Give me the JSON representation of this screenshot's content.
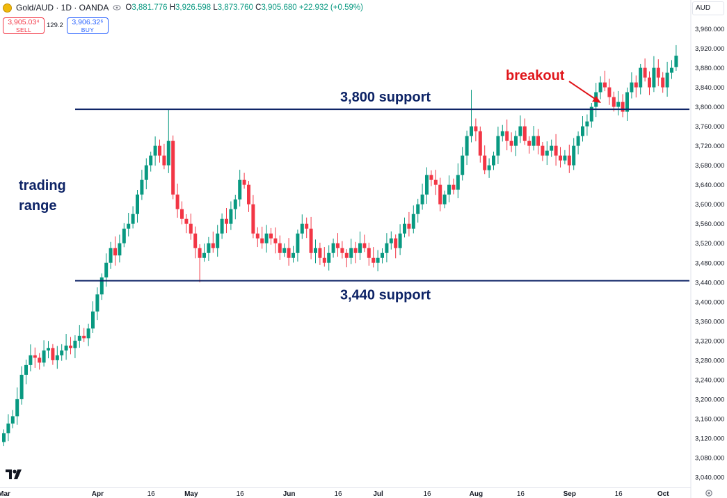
{
  "header": {
    "symbol": "Gold/AUD · 1D · OANDA",
    "open_key": "O",
    "open": "3,881.776",
    "high_key": "H",
    "high": "3,926.598",
    "low_key": "L",
    "low": "3,873.760",
    "close_key": "C",
    "close": "3,905.680",
    "change": "+22.932 (+0.59%)"
  },
  "trade": {
    "sell_price": "3,905.03⁴",
    "sell_label": "SELL",
    "spread": "129.2",
    "buy_price": "3,906.32⁶",
    "buy_label": "BUY"
  },
  "currency": "AUD",
  "colors": {
    "up": "#089981",
    "down": "#f23645",
    "line": "#0d2366",
    "annotation_red": "#e0161b"
  },
  "icons": [
    "gold-coin-icon",
    "eye-icon",
    "tradingview-logo-icon",
    "settings-icon"
  ],
  "chart_data": {
    "type": "candlestick",
    "y_axis": {
      "min": 3020,
      "max": 3985,
      "step": 40,
      "position": "right",
      "tick_labels": [
        "3,040.000",
        "3,080.000",
        "3,120.000",
        "3,160.000",
        "3,200.000",
        "3,240.000",
        "3,280.000",
        "3,320.000",
        "3,360.000",
        "3,400.000",
        "3,440.000",
        "3,480.000",
        "3,520.000",
        "3,560.000",
        "3,600.000",
        "3,640.000",
        "3,680.000",
        "3,720.000",
        "3,760.000",
        "3,800.000",
        "3,840.000",
        "3,880.000",
        "3,920.000",
        "3,960.000"
      ]
    },
    "x_axis": {
      "tick_labels": [
        {
          "label": "Mar",
          "idx": 0,
          "bold": true
        },
        {
          "label": "Apr",
          "idx": 21,
          "bold": true
        },
        {
          "label": "16",
          "idx": 33,
          "bold": false
        },
        {
          "label": "May",
          "idx": 42,
          "bold": true
        },
        {
          "label": "16",
          "idx": 53,
          "bold": false
        },
        {
          "label": "Jun",
          "idx": 64,
          "bold": true
        },
        {
          "label": "16",
          "idx": 75,
          "bold": false
        },
        {
          "label": "Jul",
          "idx": 84,
          "bold": true
        },
        {
          "label": "16",
          "idx": 95,
          "bold": false
        },
        {
          "label": "Aug",
          "idx": 106,
          "bold": true
        },
        {
          "label": "16",
          "idx": 116,
          "bold": false
        },
        {
          "label": "Sep",
          "idx": 127,
          "bold": true
        },
        {
          "label": "16",
          "idx": 138,
          "bold": false
        },
        {
          "label": "Oct",
          "idx": 148,
          "bold": true
        }
      ]
    },
    "closes": [
      3130,
      3150,
      3165,
      3200,
      3250,
      3270,
      3290,
      3285,
      3275,
      3300,
      3305,
      3280,
      3290,
      3300,
      3310,
      3305,
      3320,
      3330,
      3325,
      3345,
      3380,
      3415,
      3450,
      3480,
      3510,
      3495,
      3520,
      3550,
      3560,
      3580,
      3620,
      3650,
      3680,
      3700,
      3720,
      3700,
      3680,
      3730,
      3620,
      3590,
      3570,
      3560,
      3540,
      3510,
      3490,
      3500,
      3520,
      3510,
      3540,
      3570,
      3560,
      3590,
      3610,
      3650,
      3640,
      3600,
      3540,
      3530,
      3520,
      3540,
      3530,
      3520,
      3500,
      3510,
      3490,
      3500,
      3540,
      3560,
      3550,
      3500,
      3510,
      3490,
      3480,
      3500,
      3520,
      3510,
      3500,
      3490,
      3510,
      3500,
      3520,
      3510,
      3490,
      3480,
      3490,
      3500,
      3520,
      3530,
      3510,
      3540,
      3560,
      3550,
      3580,
      3600,
      3620,
      3660,
      3650,
      3640,
      3600,
      3620,
      3640,
      3630,
      3660,
      3700,
      3740,
      3760,
      3750,
      3700,
      3670,
      3680,
      3700,
      3740,
      3750,
      3730,
      3720,
      3740,
      3760,
      3730,
      3720,
      3740,
      3720,
      3700,
      3710,
      3720,
      3700,
      3690,
      3700,
      3680,
      3720,
      3740,
      3760,
      3770,
      3800,
      3830,
      3850,
      3840,
      3820,
      3800,
      3810,
      3790,
      3830,
      3850,
      3840,
      3880,
      3860,
      3840,
      3880,
      3860,
      3840,
      3870,
      3880,
      3905
    ],
    "candles_note": "OHLC approximated from closes; last candle O 3881.776 H 3926.598 L 3873.760 C 3905.680",
    "levels": [
      {
        "name": "upper",
        "value": 3795,
        "label": "3,800 support"
      },
      {
        "name": "lower",
        "value": 3443,
        "label": "3,440 support"
      }
    ],
    "annotations": [
      {
        "text": "trading",
        "kind": "text"
      },
      {
        "text": "range",
        "kind": "text"
      },
      {
        "text": "breakout",
        "kind": "arrow",
        "target_idx": 136,
        "target_value": 3800
      }
    ]
  }
}
